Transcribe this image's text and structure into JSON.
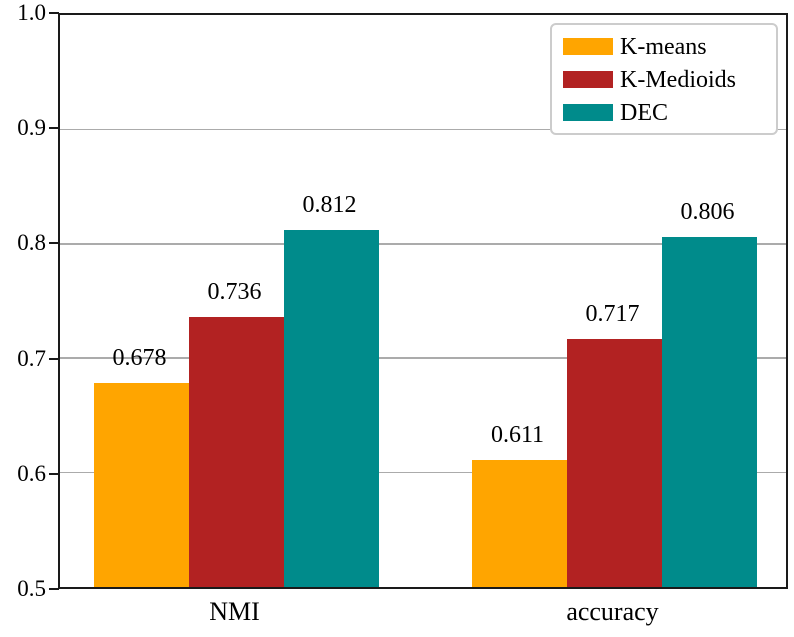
{
  "chart_data": {
    "type": "bar",
    "title": "",
    "xlabel": "",
    "ylabel": "",
    "categories": [
      "NMI",
      "accuracy"
    ],
    "series": [
      {
        "name": "K-means",
        "color": "#FFA500",
        "values": [
          0.678,
          0.611
        ]
      },
      {
        "name": "K-Medioids",
        "color": "#B22222",
        "values": [
          0.736,
          0.717
        ]
      },
      {
        "name": "DEC",
        "color": "#008B8B",
        "values": [
          0.812,
          0.806
        ]
      }
    ],
    "value_labels": [
      "0.678",
      "0.736",
      "0.812",
      "0.611",
      "0.717",
      "0.806"
    ],
    "ylim": [
      0.5,
      1.0
    ],
    "yticks": [
      "0.5",
      "0.6",
      "0.7",
      "0.8",
      "0.9",
      "1.0"
    ],
    "grid": true,
    "legend_position": "upper right",
    "colors": {
      "grid": "#ababab",
      "spine": "#1a1a1a",
      "legend_border": "#cccccc",
      "text": "#000000"
    }
  }
}
